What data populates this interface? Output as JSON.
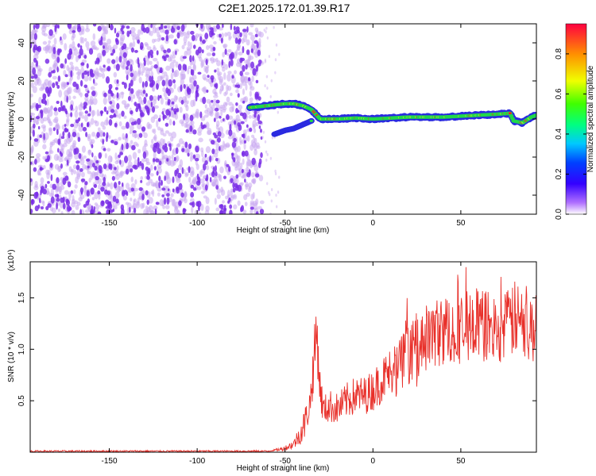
{
  "title": "C2E1.2025.172.01.39.R17",
  "colors": {
    "snr_line": "#e8302a",
    "dot_purple": "#7a2ee6",
    "dot_light": "#c9a8f0",
    "trace_blue": "#2a2ae0",
    "trace_green": "#20d84a",
    "trace_yellow": "#f4e020",
    "trace_red": "#ff2020"
  },
  "chart_data": [
    {
      "type": "heatmap",
      "title": "C2E1.2025.172.01.39.R17",
      "xlabel": "Height of straight line (km)",
      "ylabel": "Frequency (Hz)",
      "xlim": [
        -195,
        93
      ],
      "ylim": [
        -50,
        50
      ],
      "xticks": [
        -150,
        -100,
        -50,
        0,
        50
      ],
      "yticks": [
        -40,
        -20,
        0,
        20,
        40
      ],
      "colorbar": {
        "label": "Normalized spectral amplitude",
        "range": [
          0,
          0.95
        ],
        "ticks": [
          0.0,
          0.2,
          0.4,
          0.6,
          0.8
        ],
        "colormap": [
          "#ffffff",
          "#b070ff",
          "#3300ff",
          "#0040ff",
          "#00c8ff",
          "#00ff80",
          "#40ff00",
          "#f0ff00",
          "#ff9000",
          "#ff0040"
        ]
      },
      "noise_region_x": [
        -195,
        -63
      ],
      "trace": {
        "x": [
          -70,
          -60,
          -55,
          -50,
          -45,
          -40,
          -35,
          -30,
          -20,
          -10,
          0,
          10,
          20,
          30,
          40,
          50,
          60,
          70,
          78,
          80,
          85,
          90,
          93
        ],
        "y": [
          6,
          7,
          7.5,
          8,
          8,
          7,
          5,
          0,
          0,
          0.5,
          0,
          0.5,
          1,
          1,
          1,
          1.5,
          2,
          2.5,
          3,
          -1,
          -2,
          1,
          2
        ]
      },
      "trace_lower": {
        "x": [
          -56,
          -50,
          -45,
          -40,
          -35
        ],
        "y": [
          -8,
          -6,
          -5,
          -3,
          -1
        ]
      }
    },
    {
      "type": "line",
      "xlabel": "Height of straight line (km)",
      "ylabel": "SNR (10 * v/v)",
      "y_exponent_label": "(x10⁴)",
      "xlim": [
        -195,
        93
      ],
      "ylim": [
        0,
        1.85
      ],
      "xticks": [
        -150,
        -100,
        -50,
        0,
        50
      ],
      "yticks": [
        0.5,
        1.0,
        1.5
      ],
      "series": [
        {
          "x": [
            -195,
            -60,
            -52,
            -50,
            -45,
            -40,
            -36,
            -34,
            -32,
            -30,
            -28,
            -25,
            -20,
            -15,
            -10,
            -5,
            0,
            5,
            10,
            15,
            20,
            25,
            30,
            35,
            40,
            45,
            50,
            55,
            60,
            65,
            70,
            75,
            80,
            85,
            90,
            93
          ],
          "y": [
            0.01,
            0.01,
            0.03,
            0.04,
            0.08,
            0.22,
            0.45,
            0.8,
            1.2,
            0.6,
            0.4,
            0.45,
            0.42,
            0.5,
            0.55,
            0.55,
            0.6,
            0.7,
            0.78,
            0.85,
            0.95,
            1.05,
            1.1,
            1.15,
            1.18,
            1.2,
            1.2,
            1.25,
            1.25,
            1.22,
            1.2,
            1.2,
            1.3,
            1.25,
            1.2,
            1.2
          ]
        }
      ]
    }
  ]
}
